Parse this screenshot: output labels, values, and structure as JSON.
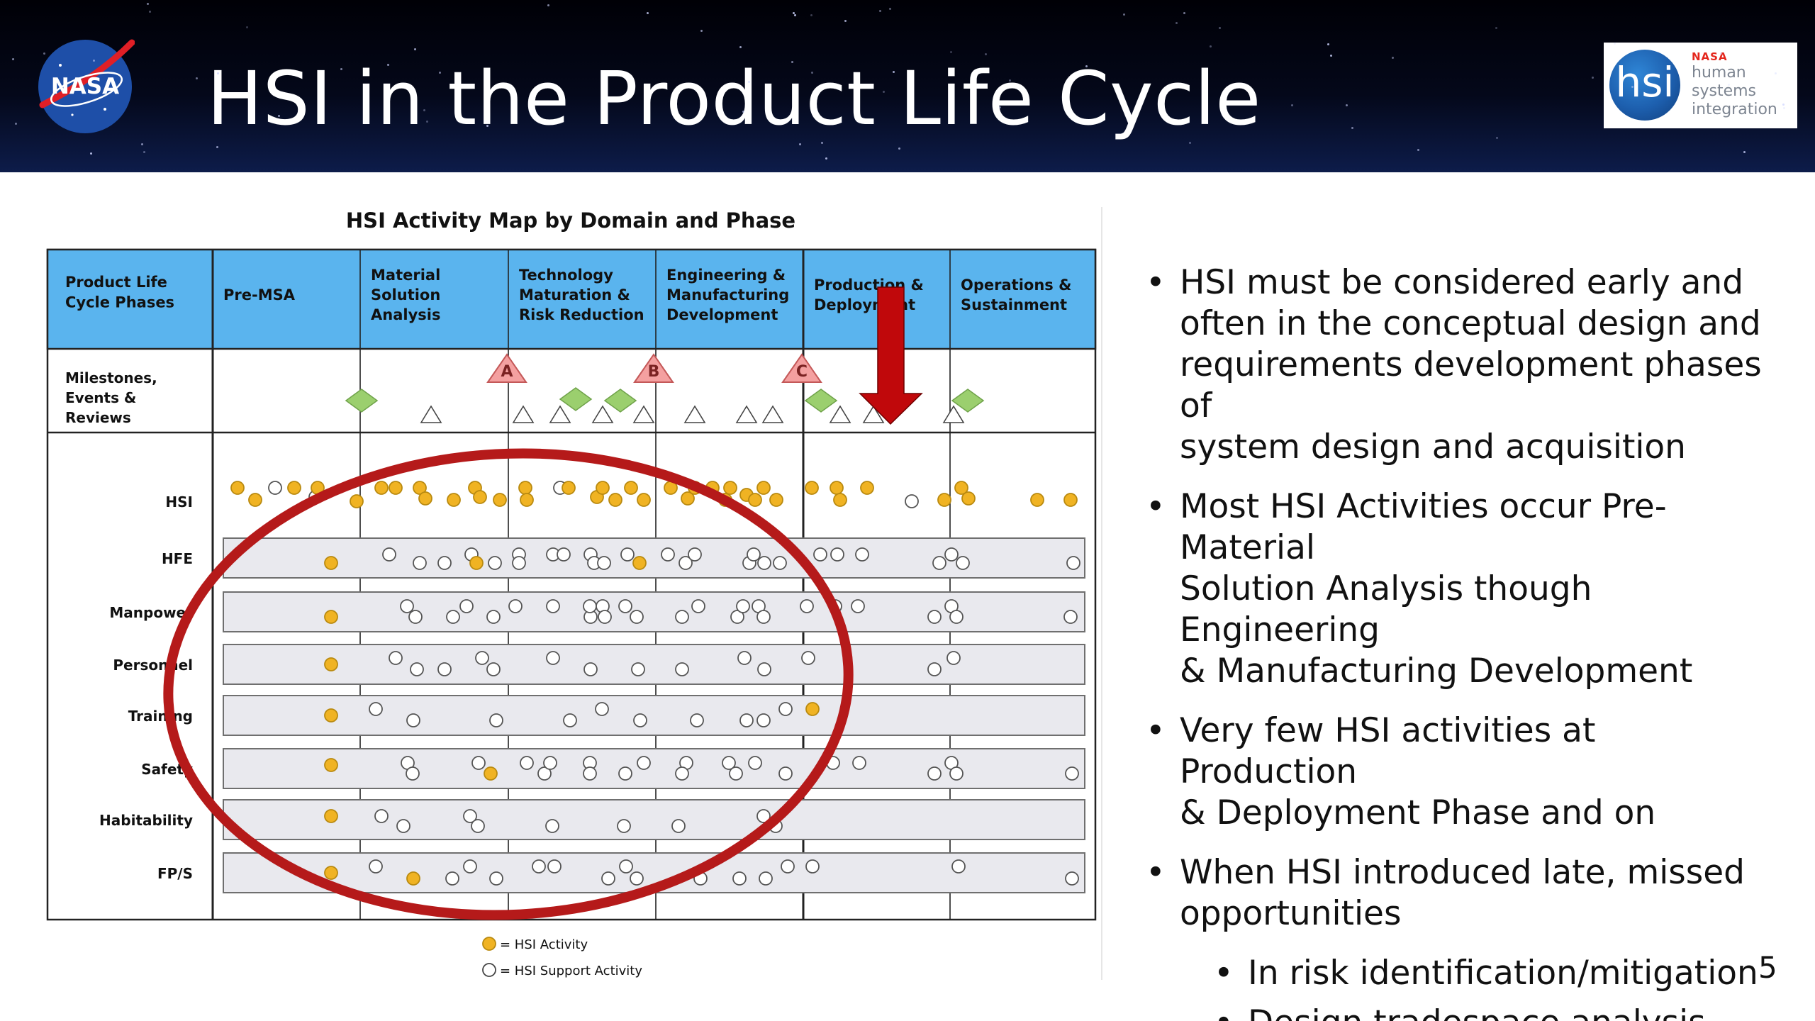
{
  "slide": {
    "title": "HSI in the Product Life Cycle",
    "page_number": "5"
  },
  "logos": {
    "nasa_text": "NASA",
    "hsi_logo": {
      "nasa": "NASA",
      "mark": "hsi",
      "words": [
        "human",
        "systems",
        "integration"
      ]
    }
  },
  "figure": {
    "title": "HSI Activity Map by Domain and Phase",
    "header_label": "Product Life Cycle Phases",
    "phases": [
      "Pre-MSA",
      "Material Solution Analysis",
      "Technology Maturation & Risk Reduction",
      "Engineering & Manufacturing Development",
      "Production & Deployment",
      "Operations & Sustainment"
    ],
    "milestone_row_label": "Milestones, Events & Reviews",
    "milestones": [
      "A",
      "B",
      "C"
    ],
    "domains": [
      "HSI",
      "HFE",
      "Manpower",
      "Personnel",
      "Training",
      "Safety",
      "Habitability",
      "FP/S"
    ],
    "legend": [
      {
        "label": "= HSI Activity",
        "color": "#f0b323"
      },
      {
        "label": "= HSI Support Activity",
        "color": "#ffffff"
      }
    ],
    "colors": {
      "header_fill": "#5ab4ee",
      "activity": "#f0b323",
      "diamond": "#9bcf6e",
      "milestone": "#f4a0a0",
      "ellipse": "#b51a1a",
      "arrow": "#c0080b"
    },
    "emphasis": {
      "ellipse": "encircles Pre-MSA through Engineering & Manufacturing Development",
      "arrow": "points down at Production & Deployment milestones"
    }
  },
  "bullets": [
    {
      "text": "HSI must be considered early and often in the conceptual design and requirements development phases of system design and acquisition",
      "lines": [
        "HSI must be considered early and",
        "often in the conceptual design and",
        "requirements development phases of",
        "system design and acquisition"
      ]
    },
    {
      "text": "Most HSI Activities occur Pre-Material Solution Analysis though Engineering & Manufacturing Development",
      "lines": [
        "Most HSI Activities occur Pre-Material",
        "Solution Analysis though Engineering",
        "& Manufacturing Development"
      ]
    },
    {
      "text": "Very few HSI activities at Production & Deployment Phase and on",
      "lines": [
        "Very few HSI activities at Production",
        "& Deployment Phase and on"
      ]
    },
    {
      "text": "When HSI introduced late, missed opportunities",
      "lines": [
        "When HSI introduced late, missed",
        "opportunities"
      ],
      "sub": [
        "In risk identification/mitigation",
        "Design tradespace analysis"
      ]
    }
  ]
}
